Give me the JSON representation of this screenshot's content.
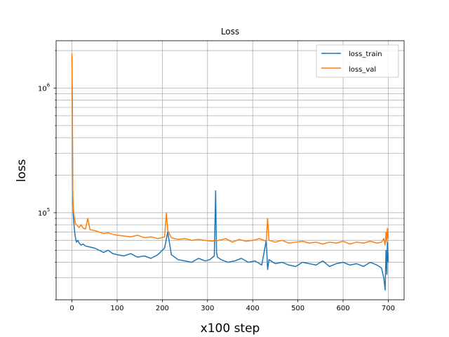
{
  "chart_data": {
    "type": "line",
    "title": "Loss",
    "xlabel": "x100 step",
    "ylabel": "loss",
    "y_scale": "log",
    "xlim": [
      -35,
      735
    ],
    "ylim": [
      20000,
      2400000
    ],
    "x_ticks": [
      0,
      100,
      200,
      300,
      400,
      500,
      600,
      700
    ],
    "y_ticks_major": [
      {
        "value": 100000,
        "base": "10",
        "exp": "5"
      },
      {
        "value": 1000000,
        "base": "10",
        "exp": "6"
      }
    ],
    "y_minor_ticks": [
      20000,
      30000,
      40000,
      50000,
      60000,
      70000,
      80000,
      90000,
      200000,
      300000,
      400000,
      500000,
      600000,
      700000,
      800000,
      900000,
      2000000
    ],
    "grid": true,
    "legend_position": "upper right",
    "colors": {
      "loss_train": "#1f77b4",
      "loss_val": "#ff7f0e"
    },
    "series": [
      {
        "name": "loss_train",
        "color": "#1f77b4",
        "x": [
          0,
          1,
          2,
          3,
          4,
          6,
          8,
          10,
          13,
          16,
          20,
          25,
          30,
          40,
          50,
          60,
          70,
          80,
          90,
          100,
          115,
          130,
          145,
          160,
          175,
          190,
          205,
          212,
          220,
          235,
          250,
          265,
          280,
          295,
          305,
          315,
          318,
          319,
          320,
          322,
          330,
          345,
          360,
          375,
          390,
          405,
          420,
          430,
          433,
          436,
          450,
          465,
          480,
          495,
          510,
          525,
          540,
          555,
          570,
          585,
          600,
          615,
          630,
          645,
          660,
          675,
          685,
          690,
          693,
          695,
          697,
          698,
          700
        ],
        "y": [
          1800000,
          500000,
          120000,
          95000,
          85000,
          70000,
          62000,
          58000,
          60000,
          57000,
          55000,
          56000,
          54000,
          53000,
          52000,
          50000,
          48000,
          50000,
          47000,
          46000,
          45000,
          47000,
          44000,
          45000,
          43000,
          46000,
          52000,
          70000,
          46000,
          42000,
          41000,
          40000,
          43000,
          41000,
          42000,
          45000,
          150000,
          80000,
          48000,
          44000,
          42000,
          40000,
          41000,
          43000,
          40000,
          41000,
          38000,
          60000,
          35000,
          42000,
          39000,
          40000,
          38000,
          37000,
          40000,
          39000,
          38000,
          41000,
          37000,
          39000,
          40000,
          38000,
          39000,
          37000,
          40000,
          38000,
          36000,
          30000,
          24000,
          50000,
          32000,
          58000,
          40000
        ]
      },
      {
        "name": "loss_val",
        "color": "#ff7f0e",
        "x": [
          0,
          1,
          2,
          3,
          4,
          6,
          8,
          10,
          13,
          16,
          20,
          25,
          30,
          35,
          40,
          50,
          60,
          70,
          80,
          90,
          100,
          115,
          130,
          145,
          160,
          175,
          190,
          205,
          209,
          212,
          220,
          235,
          250,
          265,
          280,
          295,
          310,
          325,
          340,
          355,
          370,
          385,
          400,
          415,
          430,
          433,
          436,
          450,
          465,
          480,
          495,
          510,
          525,
          540,
          555,
          570,
          585,
          600,
          615,
          630,
          645,
          660,
          675,
          685,
          690,
          693,
          695,
          697,
          698,
          700
        ],
        "y": [
          1900000,
          600000,
          140000,
          110000,
          100000,
          88000,
          82000,
          80000,
          78000,
          76000,
          80000,
          75000,
          74000,
          90000,
          73000,
          72000,
          70000,
          68000,
          69000,
          67000,
          66000,
          65000,
          64000,
          66000,
          63000,
          64000,
          62000,
          64000,
          100000,
          72000,
          63000,
          61000,
          62000,
          60000,
          61000,
          60000,
          59000,
          60000,
          62000,
          58000,
          61000,
          59000,
          60000,
          62000,
          59000,
          90000,
          60000,
          58000,
          60000,
          57000,
          58000,
          59000,
          57000,
          58000,
          56000,
          58000,
          57000,
          59000,
          56000,
          58000,
          57000,
          59000,
          57000,
          58000,
          62000,
          55000,
          70000,
          58000,
          75000,
          62000
        ]
      }
    ]
  }
}
